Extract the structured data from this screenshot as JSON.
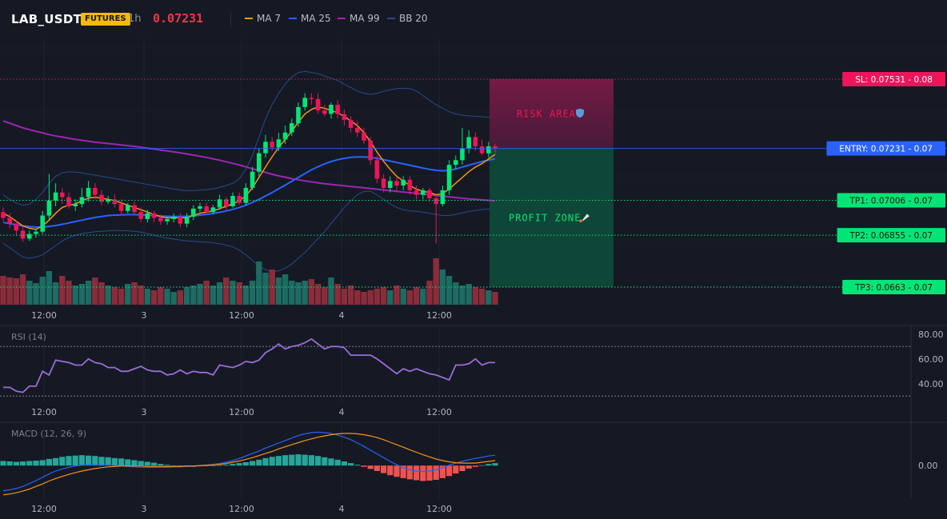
{
  "header": {
    "symbol": "LAB_USDT",
    "market_badge": "FUTURES",
    "timeframe": "1h",
    "last_price": "0.07231",
    "indicators": [
      {
        "label": "MA 7",
        "color": "#f7931a"
      },
      {
        "label": "MA 25",
        "color": "#2962ff"
      },
      {
        "label": "MA 99",
        "color": "#9c27b0"
      },
      {
        "label": "BB 20",
        "color": "#2a4a8a"
      }
    ]
  },
  "zones": {
    "risk_label": "RISK AREA",
    "profit_label": "PROFIT ZONE"
  },
  "levels": [
    {
      "key": "sl",
      "label": "SL: 0.07531 - 0.08",
      "price": 0.07531,
      "color": "#f0145a",
      "line": "dotted"
    },
    {
      "key": "entry",
      "label": "ENTRY: 0.07231 - 0.07",
      "price": 0.07231,
      "color": "#2962ff",
      "line": "solid"
    },
    {
      "key": "tp1",
      "label": "TP1: 0.07006 - 0.07",
      "price": 0.07006,
      "color": "#00e676",
      "line": "dotted"
    },
    {
      "key": "tp2",
      "label": "TP2: 0.06855 - 0.07",
      "price": 0.06855,
      "color": "#00e676",
      "line": "dotted"
    },
    {
      "key": "tp3",
      "label": "TP3: 0.0663 - 0.07",
      "price": 0.0663,
      "color": "#00e676",
      "line": "dotted"
    }
  ],
  "rsi": {
    "title": "RSI (14)",
    "ticks": [
      "80.00",
      "60.00",
      "40.00"
    ]
  },
  "macd": {
    "title": "MACD (12, 26, 9)",
    "ticks": [
      "0.00"
    ]
  },
  "time_axis": [
    "12:00",
    "3",
    "12:00",
    "4",
    "12:00"
  ],
  "chart_data": [
    {
      "type": "candlestick",
      "x": [
        0,
        1,
        2,
        3,
        4,
        5,
        6,
        7,
        8,
        9,
        10,
        11,
        12,
        13,
        14,
        15,
        16,
        17,
        18,
        19,
        20,
        21,
        22,
        23,
        24,
        25,
        26,
        27,
        28,
        29,
        30,
        31,
        32,
        33,
        34,
        35,
        36,
        37,
        38,
        39,
        40,
        41,
        42,
        43,
        44,
        45,
        46,
        47,
        48,
        49,
        50,
        51,
        52,
        53,
        54,
        55,
        56,
        57,
        58,
        59,
        60,
        61,
        62,
        63,
        64,
        65,
        66,
        67,
        68,
        69,
        70,
        71,
        72,
        73,
        74,
        75
      ],
      "open": [
        0.06955,
        0.0693,
        0.06905,
        0.06875,
        0.0684,
        0.0686,
        0.0687,
        0.0694,
        0.07005,
        0.0704,
        0.0702,
        0.0698,
        0.0699,
        0.0702,
        0.0706,
        0.0703,
        0.07,
        0.0701,
        0.0699,
        0.0696,
        0.06985,
        0.06955,
        0.06925,
        0.0695,
        0.0693,
        0.06915,
        0.06925,
        0.06935,
        0.06905,
        0.06935,
        0.0697,
        0.0698,
        0.06955,
        0.06975,
        0.0701,
        0.0698,
        0.07025,
        0.06995,
        0.0706,
        0.0713,
        0.0721,
        0.0726,
        0.07235,
        0.0727,
        0.073,
        0.0734,
        0.0741,
        0.0745,
        0.07445,
        0.07395,
        0.0738,
        0.0742,
        0.0738,
        0.07355,
        0.0732,
        0.073,
        0.07265,
        0.0718,
        0.071,
        0.0706,
        0.0709,
        0.0707,
        0.07095,
        0.0705,
        0.0703,
        0.0705,
        0.07015,
        0.0699,
        0.0705,
        0.0716,
        0.0718,
        0.0723,
        0.0728,
        0.0724,
        0.0721,
        0.0724
      ],
      "close": [
        0.0693,
        0.06905,
        0.06875,
        0.0684,
        0.0686,
        0.0687,
        0.0694,
        0.07005,
        0.0704,
        0.0702,
        0.0698,
        0.0699,
        0.0702,
        0.0706,
        0.0703,
        0.07,
        0.0701,
        0.0699,
        0.0696,
        0.06985,
        0.06955,
        0.06925,
        0.0695,
        0.0693,
        0.06915,
        0.06925,
        0.06935,
        0.06905,
        0.06935,
        0.0697,
        0.0698,
        0.06955,
        0.06975,
        0.0701,
        0.0698,
        0.07025,
        0.06995,
        0.0706,
        0.0713,
        0.0721,
        0.0726,
        0.07235,
        0.0727,
        0.073,
        0.0734,
        0.0741,
        0.0745,
        0.07445,
        0.07395,
        0.0738,
        0.0742,
        0.0738,
        0.07355,
        0.0732,
        0.073,
        0.07265,
        0.0718,
        0.071,
        0.0706,
        0.0709,
        0.0707,
        0.07095,
        0.0705,
        0.0703,
        0.0705,
        0.07015,
        0.0699,
        0.0705,
        0.0716,
        0.0718,
        0.0723,
        0.0728,
        0.0724,
        0.0721,
        0.0724,
        0.07231
      ],
      "high": [
        0.06975,
        0.0695,
        0.0692,
        0.0689,
        0.06875,
        0.06885,
        0.0696,
        0.0712,
        0.0708,
        0.0706,
        0.0704,
        0.0701,
        0.0706,
        0.0709,
        0.0708,
        0.0705,
        0.07025,
        0.0703,
        0.0701,
        0.06995,
        0.07,
        0.06975,
        0.06965,
        0.0696,
        0.06945,
        0.06935,
        0.0695,
        0.0695,
        0.0695,
        0.06985,
        0.06995,
        0.06995,
        0.06985,
        0.0703,
        0.0702,
        0.0704,
        0.0704,
        0.0708,
        0.0715,
        0.0723,
        0.0729,
        0.0728,
        0.073,
        0.0733,
        0.0736,
        0.0743,
        0.0747,
        0.0747,
        0.0747,
        0.0742,
        0.0743,
        0.0744,
        0.074,
        0.0737,
        0.0735,
        0.0732,
        0.0728,
        0.072,
        0.0712,
        0.0711,
        0.0711,
        0.0711,
        0.0711,
        0.0707,
        0.0706,
        0.0706,
        0.0703,
        0.0707,
        0.0718,
        0.072,
        0.0732,
        0.0731,
        0.073,
        0.0727,
        0.0726,
        0.0725
      ],
      "low": [
        0.06915,
        0.06885,
        0.06855,
        0.06825,
        0.0683,
        0.06845,
        0.0686,
        0.0692,
        0.0698,
        0.0699,
        0.0697,
        0.0696,
        0.06975,
        0.07,
        0.0701,
        0.06985,
        0.0699,
        0.06975,
        0.0694,
        0.0695,
        0.0694,
        0.0691,
        0.0691,
        0.0691,
        0.069,
        0.069,
        0.0691,
        0.0689,
        0.0689,
        0.0692,
        0.06955,
        0.06945,
        0.06945,
        0.06965,
        0.06965,
        0.06975,
        0.06985,
        0.06985,
        0.0705,
        0.0711,
        0.0719,
        0.0722,
        0.0722,
        0.0725,
        0.07285,
        0.07325,
        0.07395,
        0.0742,
        0.0738,
        0.0737,
        0.0736,
        0.0736,
        0.0733,
        0.073,
        0.0728,
        0.0725,
        0.0716,
        0.0708,
        0.0704,
        0.0704,
        0.0704,
        0.0705,
        0.0703,
        0.0701,
        0.0701,
        0.07,
        0.0682,
        0.0698,
        0.0703,
        0.0714,
        0.0716,
        0.0721,
        0.0722,
        0.072,
        0.0719,
        0.0721
      ],
      "volume": [
        36,
        34,
        33,
        38,
        30,
        27,
        35,
        42,
        28,
        36,
        30,
        24,
        26,
        30,
        34,
        28,
        24,
        22,
        20,
        26,
        28,
        24,
        20,
        18,
        22,
        20,
        16,
        18,
        22,
        24,
        26,
        30,
        24,
        28,
        34,
        30,
        28,
        24,
        30,
        54,
        40,
        44,
        34,
        38,
        30,
        28,
        30,
        32,
        26,
        22,
        34,
        26,
        20,
        24,
        18,
        16,
        18,
        20,
        22,
        18,
        24,
        20,
        18,
        22,
        20,
        30,
        58,
        44,
        36,
        28,
        24,
        26,
        22,
        20,
        18,
        16
      ],
      "ma7": [
        0.0695,
        0.06935,
        0.06915,
        0.06895,
        0.06885,
        0.0688,
        0.06895,
        0.0692,
        0.0695,
        0.06975,
        0.06985,
        0.0699,
        0.07005,
        0.07015,
        0.0702,
        0.07015,
        0.0701,
        0.07005,
        0.06995,
        0.06985,
        0.06975,
        0.06965,
        0.06955,
        0.06945,
        0.06935,
        0.0693,
        0.0693,
        0.0693,
        0.0693,
        0.0694,
        0.0695,
        0.06955,
        0.0696,
        0.0697,
        0.0698,
        0.0699,
        0.07005,
        0.07025,
        0.0706,
        0.07105,
        0.0715,
        0.07195,
        0.07235,
        0.0727,
        0.07305,
        0.07345,
        0.0738,
        0.074,
        0.0741,
        0.07405,
        0.07395,
        0.07385,
        0.0737,
        0.0735,
        0.0733,
        0.073,
        0.0726,
        0.07215,
        0.07175,
        0.0714,
        0.0711,
        0.0709,
        0.0707,
        0.07055,
        0.07045,
        0.0704,
        0.0703,
        0.07035,
        0.07055,
        0.0708,
        0.07105,
        0.0713,
        0.0715,
        0.07165,
        0.07185,
        0.07205
      ],
      "ma25": [
        0.0691,
        0.06905,
        0.069,
        0.06895,
        0.06892,
        0.0689,
        0.0689,
        0.06893,
        0.06897,
        0.06902,
        0.06908,
        0.06914,
        0.0692,
        0.06926,
        0.06932,
        0.06936,
        0.0694,
        0.06942,
        0.06943,
        0.06944,
        0.06944,
        0.06943,
        0.06942,
        0.0694,
        0.06938,
        0.06937,
        0.06936,
        0.06936,
        0.06937,
        0.06939,
        0.06942,
        0.06945,
        0.06949,
        0.06954,
        0.0696,
        0.06967,
        0.06975,
        0.06985,
        0.06997,
        0.0701,
        0.07025,
        0.0704,
        0.07056,
        0.07072,
        0.07088,
        0.07105,
        0.07122,
        0.07138,
        0.07152,
        0.07164,
        0.07174,
        0.07182,
        0.07188,
        0.07192,
        0.07194,
        0.07194,
        0.07192,
        0.07188,
        0.07182,
        0.07176,
        0.0717,
        0.07164,
        0.07158,
        0.07152,
        0.07146,
        0.0714,
        0.07136,
        0.07134,
        0.07136,
        0.07142,
        0.0715,
        0.07158,
        0.07166,
        0.07174,
        0.0718,
        0.07186
      ],
      "ma99": [
        0.0735,
        0.0734,
        0.0733,
        0.0732,
        0.07312,
        0.07305,
        0.07298,
        0.07291,
        0.07285,
        0.0728,
        0.07275,
        0.0727,
        0.07266,
        0.07262,
        0.07258,
        0.07255,
        0.07252,
        0.07249,
        0.07246,
        0.07243,
        0.0724,
        0.07236,
        0.07232,
        0.07228,
        0.07224,
        0.0722,
        0.07216,
        0.07212,
        0.07207,
        0.07202,
        0.07197,
        0.07192,
        0.07186,
        0.0718,
        0.07173,
        0.07166,
        0.07159,
        0.07151,
        0.07143,
        0.07135,
        0.07127,
        0.07119,
        0.07112,
        0.07106,
        0.071,
        0.07095,
        0.0709,
        0.07086,
        0.07082,
        0.07078,
        0.07075,
        0.07072,
        0.07069,
        0.07066,
        0.07063,
        0.0706,
        0.07057,
        0.07054,
        0.07051,
        0.07048,
        0.07045,
        0.07042,
        0.07039,
        0.07036,
        0.07033,
        0.0703,
        0.07027,
        0.07024,
        0.07021,
        0.07018,
        0.07015,
        0.07012,
        0.0701,
        0.07008,
        0.07006,
        0.07004
      ],
      "bb_upper": [
        0.0703,
        0.0701,
        0.06995,
        0.06985,
        0.0699,
        0.0701,
        0.0704,
        0.0708,
        0.0711,
        0.07125,
        0.0713,
        0.07128,
        0.07125,
        0.0712,
        0.07115,
        0.0711,
        0.07105,
        0.071,
        0.07095,
        0.0709,
        0.07085,
        0.0708,
        0.07075,
        0.0707,
        0.07065,
        0.0706,
        0.07055,
        0.0705,
        0.07048,
        0.07048,
        0.0705,
        0.07052,
        0.07056,
        0.07062,
        0.0707,
        0.0708,
        0.071,
        0.0714,
        0.072,
        0.0728,
        0.0736,
        0.0742,
        0.0747,
        0.0751,
        0.0754,
        0.0756,
        0.07565,
        0.0756,
        0.07555,
        0.07545,
        0.07535,
        0.07525,
        0.0751,
        0.07495,
        0.0748,
        0.0747,
        0.07465,
        0.0747,
        0.07478,
        0.07485,
        0.0749,
        0.07492,
        0.0749,
        0.0748,
        0.0746,
        0.0744,
        0.0742,
        0.07405,
        0.0739,
        0.0738,
        0.07375,
        0.07372,
        0.0737,
        0.07368,
        0.07366,
        0.07365
      ],
      "bb_lower": [
        0.0682,
        0.068,
        0.0678,
        0.0676,
        0.06755,
        0.0676,
        0.0677,
        0.0679,
        0.0681,
        0.0683,
        0.06845,
        0.06855,
        0.06862,
        0.06866,
        0.0687,
        0.06872,
        0.06874,
        0.06875,
        0.06875,
        0.06874,
        0.06872,
        0.06868,
        0.06862,
        0.06855,
        0.06848,
        0.06842,
        0.06838,
        0.06834,
        0.0683,
        0.06828,
        0.06826,
        0.06825,
        0.06822,
        0.06818,
        0.06812,
        0.06804,
        0.0679,
        0.0677,
        0.06745,
        0.06722,
        0.06705,
        0.06698,
        0.067,
        0.06712,
        0.0673,
        0.06755,
        0.0678,
        0.0681,
        0.0684,
        0.0687,
        0.06905,
        0.0694,
        0.06975,
        0.07005,
        0.0703,
        0.07045,
        0.07045,
        0.0703,
        0.0701,
        0.0699,
        0.06975,
        0.06965,
        0.0696,
        0.06958,
        0.06955,
        0.0695,
        0.06945,
        0.0694,
        0.0694,
        0.06945,
        0.06952,
        0.06958,
        0.06962,
        0.06966,
        0.06968,
        0.0697
      ]
    },
    {
      "type": "line",
      "name": "RSI (14)",
      "ylim": [
        25,
        85
      ],
      "values": [
        37,
        37,
        34,
        33,
        38,
        38,
        50,
        47,
        59,
        58,
        57,
        55,
        55,
        60,
        57,
        56,
        53,
        53,
        50,
        50,
        52,
        54,
        51,
        50,
        50,
        47,
        48,
        51,
        48,
        50,
        49,
        49,
        47,
        55,
        54,
        53,
        55,
        58,
        57,
        59,
        65,
        68,
        72,
        68,
        70,
        71,
        73,
        76,
        72,
        68,
        70,
        70,
        69,
        63,
        63,
        63,
        63,
        60,
        56,
        52,
        48,
        52,
        50,
        52,
        50,
        48,
        47,
        45,
        43,
        55,
        55,
        56,
        60,
        55,
        57,
        57
      ]
    },
    {
      "type": "bar",
      "name": "MACD (12, 26, 9)",
      "ylim": [
        -0.0008,
        0.001
      ],
      "histogram": [
        0.00011,
        0.0001,
        9e-05,
        0.0001,
        0.00011,
        0.00012,
        0.00013,
        0.00016,
        0.00018,
        0.00021,
        0.00023,
        0.00024,
        0.00025,
        0.00024,
        0.00023,
        0.00021,
        0.0002,
        0.00018,
        0.00017,
        0.00015,
        0.00013,
        0.00011,
        9e-05,
        7e-05,
        4e-05,
        2e-05,
        0.0,
        -2e-05,
        -3e-05,
        -3e-05,
        -2e-05,
        -1e-05,
        0.0,
        1e-05,
        2e-05,
        4e-05,
        6e-05,
        8e-05,
        0.00011,
        0.00014,
        0.00018,
        0.00021,
        0.00023,
        0.00025,
        0.00026,
        0.00027,
        0.00026,
        0.00025,
        0.00023,
        0.0002,
        0.00017,
        0.00014,
        0.0001,
        6e-05,
        2e-05,
        -3e-05,
        -8e-05,
        -0.00013,
        -0.00018,
        -0.00023,
        -0.00027,
        -0.0003,
        -0.00033,
        -0.00035,
        -0.00037,
        -0.00036,
        -0.00034,
        -0.0003,
        -0.00025,
        -0.00019,
        -0.00013,
        -7e-05,
        -3e-05,
        1e-05,
        4e-05,
        6e-05
      ],
      "macd": [
        -0.0006,
        -0.00058,
        -0.00055,
        -0.0005,
        -0.00043,
        -0.00036,
        -0.00028,
        -0.0002,
        -0.00013,
        -8e-05,
        -4e-05,
        -1e-05,
        1e-05,
        2e-05,
        2e-05,
        2e-05,
        1e-05,
        0.0,
        -1e-05,
        -2e-05,
        -3e-05,
        -4e-05,
        -4e-05,
        -4e-05,
        -4e-05,
        -4e-05,
        -3e-05,
        -3e-05,
        -2e-05,
        -1e-05,
        0.0,
        1e-05,
        3e-05,
        5e-05,
        8e-05,
        0.00012,
        0.00017,
        0.00023,
        0.00029,
        0.00035,
        0.00042,
        0.00048,
        0.00054,
        0.0006,
        0.00066,
        0.00072,
        0.00076,
        0.00079,
        0.0008,
        0.00079,
        0.00077,
        0.00073,
        0.00068,
        0.00062,
        0.00054,
        0.00046,
        0.00037,
        0.00028,
        0.00019,
        0.0001,
        2e-05,
        -5e-05,
        -0.0001,
        -0.00013,
        -0.00014,
        -0.00013,
        -0.0001,
        -5e-05,
        1e-05,
        6e-05,
        0.0001,
        0.00014,
        0.00017,
        0.0002,
        0.00023,
        0.00025
      ],
      "signal": [
        -0.0007,
        -0.00068,
        -0.00065,
        -0.00061,
        -0.00056,
        -0.0005,
        -0.00044,
        -0.00037,
        -0.00031,
        -0.00026,
        -0.00021,
        -0.00017,
        -0.00013,
        -0.0001,
        -7e-05,
        -5e-05,
        -3e-05,
        -2e-05,
        -1e-05,
        -1e-05,
        -1e-05,
        -1e-05,
        -2e-05,
        -2e-05,
        -2e-05,
        -2e-05,
        -2e-05,
        -2e-05,
        -1e-05,
        -1e-05,
        0.0,
        1e-05,
        2e-05,
        3e-05,
        5e-05,
        8e-05,
        0.00011,
        0.00015,
        0.00019,
        0.00024,
        0.00029,
        0.00034,
        0.0004,
        0.00045,
        0.0005,
        0.00055,
        0.0006,
        0.00064,
        0.00068,
        0.00071,
        0.00074,
        0.00076,
        0.00077,
        0.00077,
        0.00076,
        0.00074,
        0.00071,
        0.00067,
        0.00062,
        0.00056,
        0.0005,
        0.00044,
        0.00038,
        0.00032,
        0.00026,
        0.00021,
        0.00016,
        0.00012,
        9e-05,
        7e-05,
        6e-05,
        6e-05,
        6e-05,
        8e-05,
        0.0001,
        0.00012
      ]
    }
  ]
}
